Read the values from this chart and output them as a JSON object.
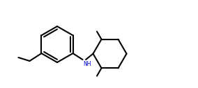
{
  "background_color": "#ffffff",
  "bond_color": "#000000",
  "nh_color": "#0000cd",
  "line_width": 1.5,
  "figsize": [
    2.84,
    1.27
  ],
  "dpi": 100,
  "xlim": [
    0,
    28.4
  ],
  "ylim": [
    0,
    12.7
  ]
}
